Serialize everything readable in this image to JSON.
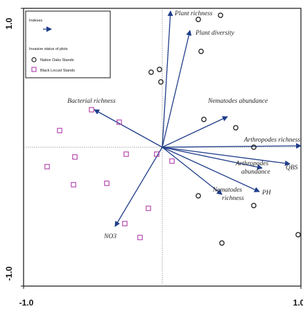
{
  "chart_data": {
    "type": "scatter",
    "subtype": "biplot",
    "xlim": [
      -1.0,
      1.0
    ],
    "ylim": [
      -1.0,
      1.0
    ],
    "x_tick_labels": [
      "-1.0",
      "1.0"
    ],
    "y_tick_labels": [
      "1.0",
      "-1.0"
    ],
    "reference_lines": {
      "x": 0,
      "y": 0,
      "style": "dotted"
    },
    "colors": {
      "vector": "#1f3d8a",
      "native": "#222222",
      "locust": "#b03aa8"
    },
    "legend": {
      "position": "top-left",
      "vector_header": "Indexes",
      "status_header": "Invasive status of plots",
      "entries": [
        {
          "marker": "circle",
          "label": "Native Oaks Stands"
        },
        {
          "marker": "square",
          "label": "Black Locust Stands"
        }
      ]
    },
    "vectors": [
      {
        "name": "Plant richness",
        "x": 0.06,
        "y": 0.98
      },
      {
        "name": "Plant diversity",
        "x": 0.2,
        "y": 0.84
      },
      {
        "name": "Nematodes abundance",
        "x": 0.47,
        "y": 0.22
      },
      {
        "name": "Arthropodes richness",
        "x": 1.0,
        "y": 0.01
      },
      {
        "name": "QBS",
        "x": 0.92,
        "y": -0.12
      },
      {
        "name": "Arthropodes abundance",
        "x": 0.72,
        "y": -0.15
      },
      {
        "name": "PH",
        "x": 0.7,
        "y": -0.32
      },
      {
        "name": "Nematodes richness",
        "x": 0.43,
        "y": -0.34
      },
      {
        "name": "NO3",
        "x": -0.34,
        "y": -0.57
      },
      {
        "name": "Bacterial richness",
        "x": -0.49,
        "y": 0.27
      }
    ],
    "series": [
      {
        "name": "Native Oaks Stands",
        "marker": "circle",
        "points": [
          {
            "x": 0.42,
            "y": 0.95
          },
          {
            "x": 0.26,
            "y": 0.92
          },
          {
            "x": 0.28,
            "y": 0.69
          },
          {
            "x": -0.08,
            "y": 0.54
          },
          {
            "x": -0.02,
            "y": 0.56
          },
          {
            "x": -0.01,
            "y": 0.47
          },
          {
            "x": 0.3,
            "y": 0.2
          },
          {
            "x": 0.53,
            "y": 0.14
          },
          {
            "x": 0.66,
            "y": 0.0
          },
          {
            "x": 0.26,
            "y": -0.35
          },
          {
            "x": 0.66,
            "y": -0.42
          },
          {
            "x": 0.43,
            "y": -0.69
          },
          {
            "x": 0.98,
            "y": -0.63
          }
        ]
      },
      {
        "name": "Black Locust Stands",
        "marker": "square",
        "points": [
          {
            "x": -0.51,
            "y": 0.27
          },
          {
            "x": -0.31,
            "y": 0.18
          },
          {
            "x": -0.74,
            "y": 0.12
          },
          {
            "x": -0.63,
            "y": -0.07
          },
          {
            "x": -0.26,
            "y": -0.05
          },
          {
            "x": -0.04,
            "y": -0.05
          },
          {
            "x": 0.07,
            "y": -0.1
          },
          {
            "x": -0.83,
            "y": -0.14
          },
          {
            "x": -0.64,
            "y": -0.27
          },
          {
            "x": -0.4,
            "y": -0.26
          },
          {
            "x": -0.1,
            "y": -0.44
          },
          {
            "x": -0.27,
            "y": -0.55
          },
          {
            "x": -0.16,
            "y": -0.65
          }
        ]
      }
    ]
  }
}
